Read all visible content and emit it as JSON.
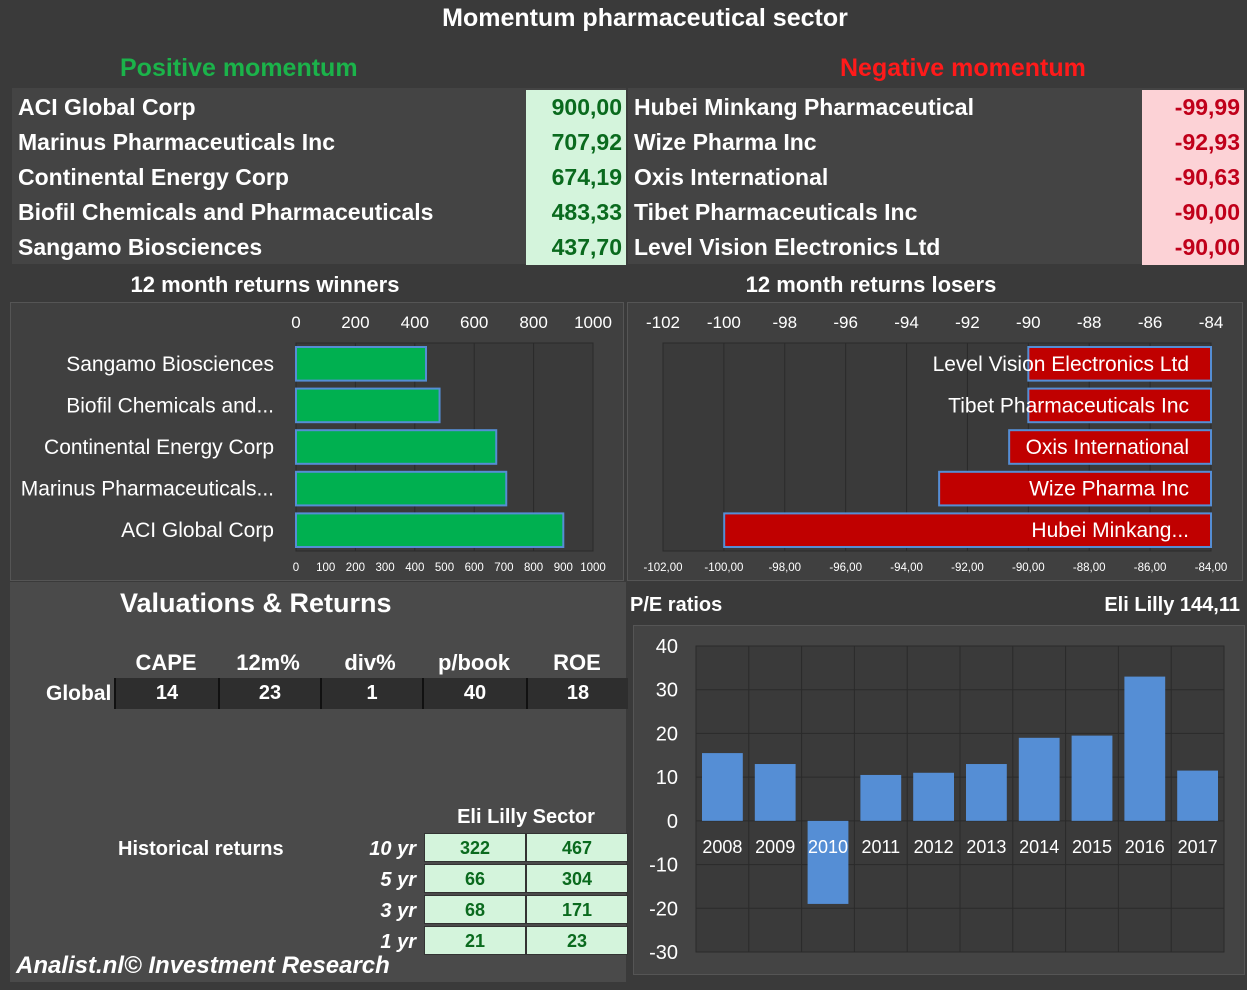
{
  "title": "Momentum pharmaceutical sector",
  "positive_header": "Positive momentum",
  "negative_header": "Negative momentum",
  "positive": [
    {
      "name": "ACI Global Corp",
      "value": "900,00"
    },
    {
      "name": "Marinus Pharmaceuticals Inc",
      "value": "707,92"
    },
    {
      "name": "Continental Energy Corp",
      "value": "674,19"
    },
    {
      "name": "Biofil Chemicals and Pharmaceuticals",
      "value": "483,33"
    },
    {
      "name": "Sangamo Biosciences",
      "value": "437,70"
    }
  ],
  "negative": [
    {
      "name": "Hubei Minkang Pharmaceutical",
      "value": "-99,99"
    },
    {
      "name": "Wize Pharma Inc",
      "value": "-92,93"
    },
    {
      "name": "Oxis International",
      "value": "-90,63"
    },
    {
      "name": "Tibet Pharmaceuticals Inc",
      "value": "-90,00"
    },
    {
      "name": "Level Vision Electronics Ltd",
      "value": "-90,00"
    }
  ],
  "valuations": {
    "title": "Valuations & Returns",
    "headers": [
      "CAPE",
      "12m%",
      "div%",
      "p/book",
      "ROE"
    ],
    "row_label": "Global",
    "values": [
      "14",
      "23",
      "1",
      "40",
      "18"
    ]
  },
  "historical": {
    "label": "Historical returns",
    "col_header": "Eli Lilly Sector",
    "rows": [
      {
        "period": "10 yr",
        "a": "322",
        "b": "467"
      },
      {
        "period": "5 yr",
        "a": "66",
        "b": "304"
      },
      {
        "period": "3 yr",
        "a": "68",
        "b": "171"
      },
      {
        "period": "1 yr",
        "a": "21",
        "b": "23"
      }
    ]
  },
  "footer": "Analist.nl© Investment Research",
  "colors": {
    "green": "#00b050",
    "red": "#c00000",
    "blue": "#558ed5"
  },
  "chart_data": [
    {
      "type": "bar",
      "orientation": "horizontal",
      "title": "12 month returns winners",
      "categories": [
        "Sangamo Biosciences",
        "Biofil Chemicals and...",
        "Continental Energy Corp",
        "Marinus Pharmaceuticals...",
        "ACI Global Corp"
      ],
      "values": [
        437.7,
        483.33,
        674.19,
        707.92,
        900.0
      ],
      "xlim": [
        0,
        1000
      ],
      "top_ticks": [
        "0",
        "200",
        "400",
        "600",
        "800",
        "1000"
      ],
      "bottom_ticks": [
        "0",
        "100",
        "200",
        "300",
        "400",
        "500",
        "600",
        "700",
        "800",
        "900",
        "1000"
      ]
    },
    {
      "type": "bar",
      "orientation": "horizontal",
      "title": "12 month returns losers",
      "categories": [
        "Level Vision Electronics Ltd",
        "Tibet Pharmaceuticals Inc",
        "Oxis International",
        "Wize Pharma Inc",
        "Hubei Minkang..."
      ],
      "values": [
        -90.0,
        -90.0,
        -90.63,
        -92.93,
        -99.99
      ],
      "xlim": [
        -102,
        -84
      ],
      "top_ticks": [
        "-102",
        "-100",
        "-98",
        "-96",
        "-94",
        "-92",
        "-90",
        "-88",
        "-86",
        "-84"
      ],
      "bottom_ticks": [
        "-102,00",
        "-100,00",
        "-98,00",
        "-96,00",
        "-94,00",
        "-92,00",
        "-90,00",
        "-88,00",
        "-86,00",
        "-84,00"
      ]
    },
    {
      "type": "bar",
      "title": "P/E ratios",
      "subtitle": "Eli Lilly 144,11",
      "categories": [
        "2008",
        "2009",
        "2010",
        "2011",
        "2012",
        "2013",
        "2014",
        "2015",
        "2016",
        "2017"
      ],
      "values": [
        15.5,
        13,
        -19,
        10.5,
        11,
        13,
        19,
        19.5,
        33,
        11.5
      ],
      "ylim": [
        -30,
        40
      ],
      "yticks": [
        "40",
        "30",
        "20",
        "10",
        "0",
        "-10",
        "-20",
        "-30"
      ]
    }
  ]
}
